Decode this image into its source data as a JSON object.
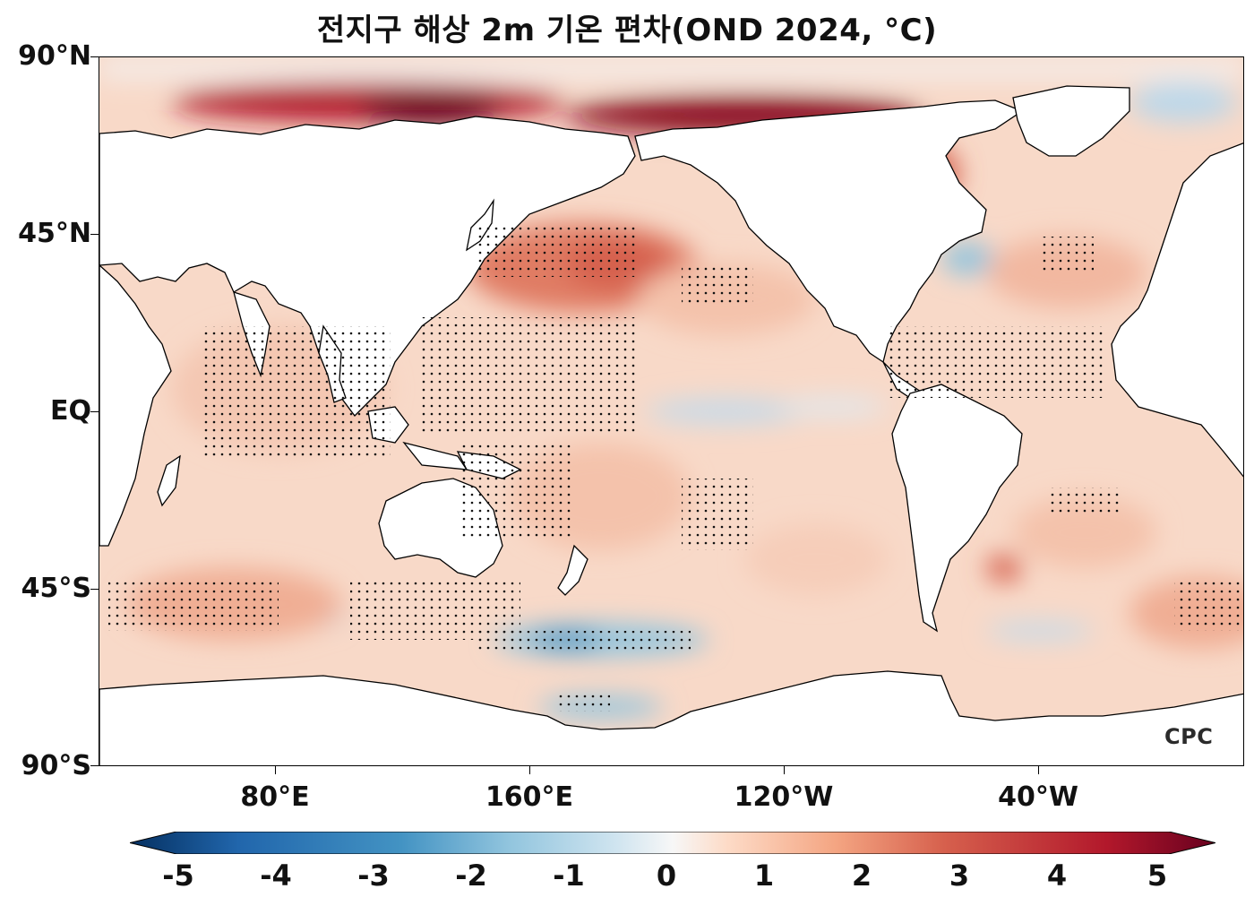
{
  "title": "전지구 해상 2m 기온 편차(OND 2024, °C)",
  "axes": {
    "y_labels": [
      "90°N",
      "45°N",
      "EQ",
      "45°S",
      "90°S"
    ],
    "x_labels": [
      "80°E",
      "160°E",
      "120°W",
      "40°W"
    ]
  },
  "colorbar": {
    "ticks": [
      "-5",
      "-4",
      "-3",
      "-2",
      "-1",
      "0",
      "1",
      "2",
      "3",
      "4",
      "5"
    ],
    "range": [
      -5,
      5
    ],
    "low_color": "#053061",
    "mid_color": "#f7f7f7",
    "high_color": "#67001f"
  },
  "logo": "CPC",
  "colors": {
    "land": "#ffffff",
    "ocean_base": "#f8d9c8",
    "warm_strong": "#b2182b",
    "cool": "#92c5de"
  }
}
